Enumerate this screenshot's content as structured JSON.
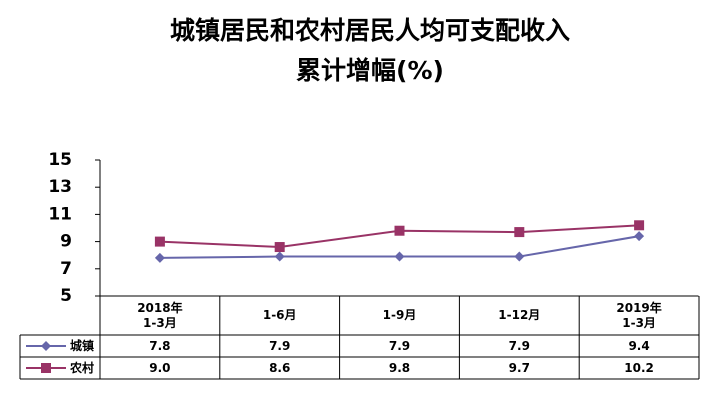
{
  "chart_data": {
    "type": "line",
    "title_lines": [
      "城镇居民和农村居民人均可支配收入",
      "累计增幅(%)"
    ],
    "categories": [
      "2018年\n1-3月",
      "1-6月",
      "1-9月",
      "1-12月",
      "2019年\n1-3月"
    ],
    "series": [
      {
        "name": "城镇",
        "color": "#6666aa",
        "marker": "diamond",
        "values": [
          7.8,
          7.9,
          7.9,
          7.9,
          9.4
        ],
        "value_labels": [
          "7.8",
          "7.9",
          "7.9",
          "7.9",
          "9.4"
        ]
      },
      {
        "name": "农村",
        "color": "#993366",
        "marker": "square",
        "values": [
          9.0,
          8.6,
          9.8,
          9.7,
          10.2
        ],
        "value_labels": [
          "9.0",
          "8.6",
          "9.8",
          "9.7",
          "10.2"
        ]
      }
    ],
    "ylim": [
      5,
      15
    ],
    "yticks": [
      5,
      7,
      9,
      11,
      13,
      15
    ],
    "grid": false
  }
}
